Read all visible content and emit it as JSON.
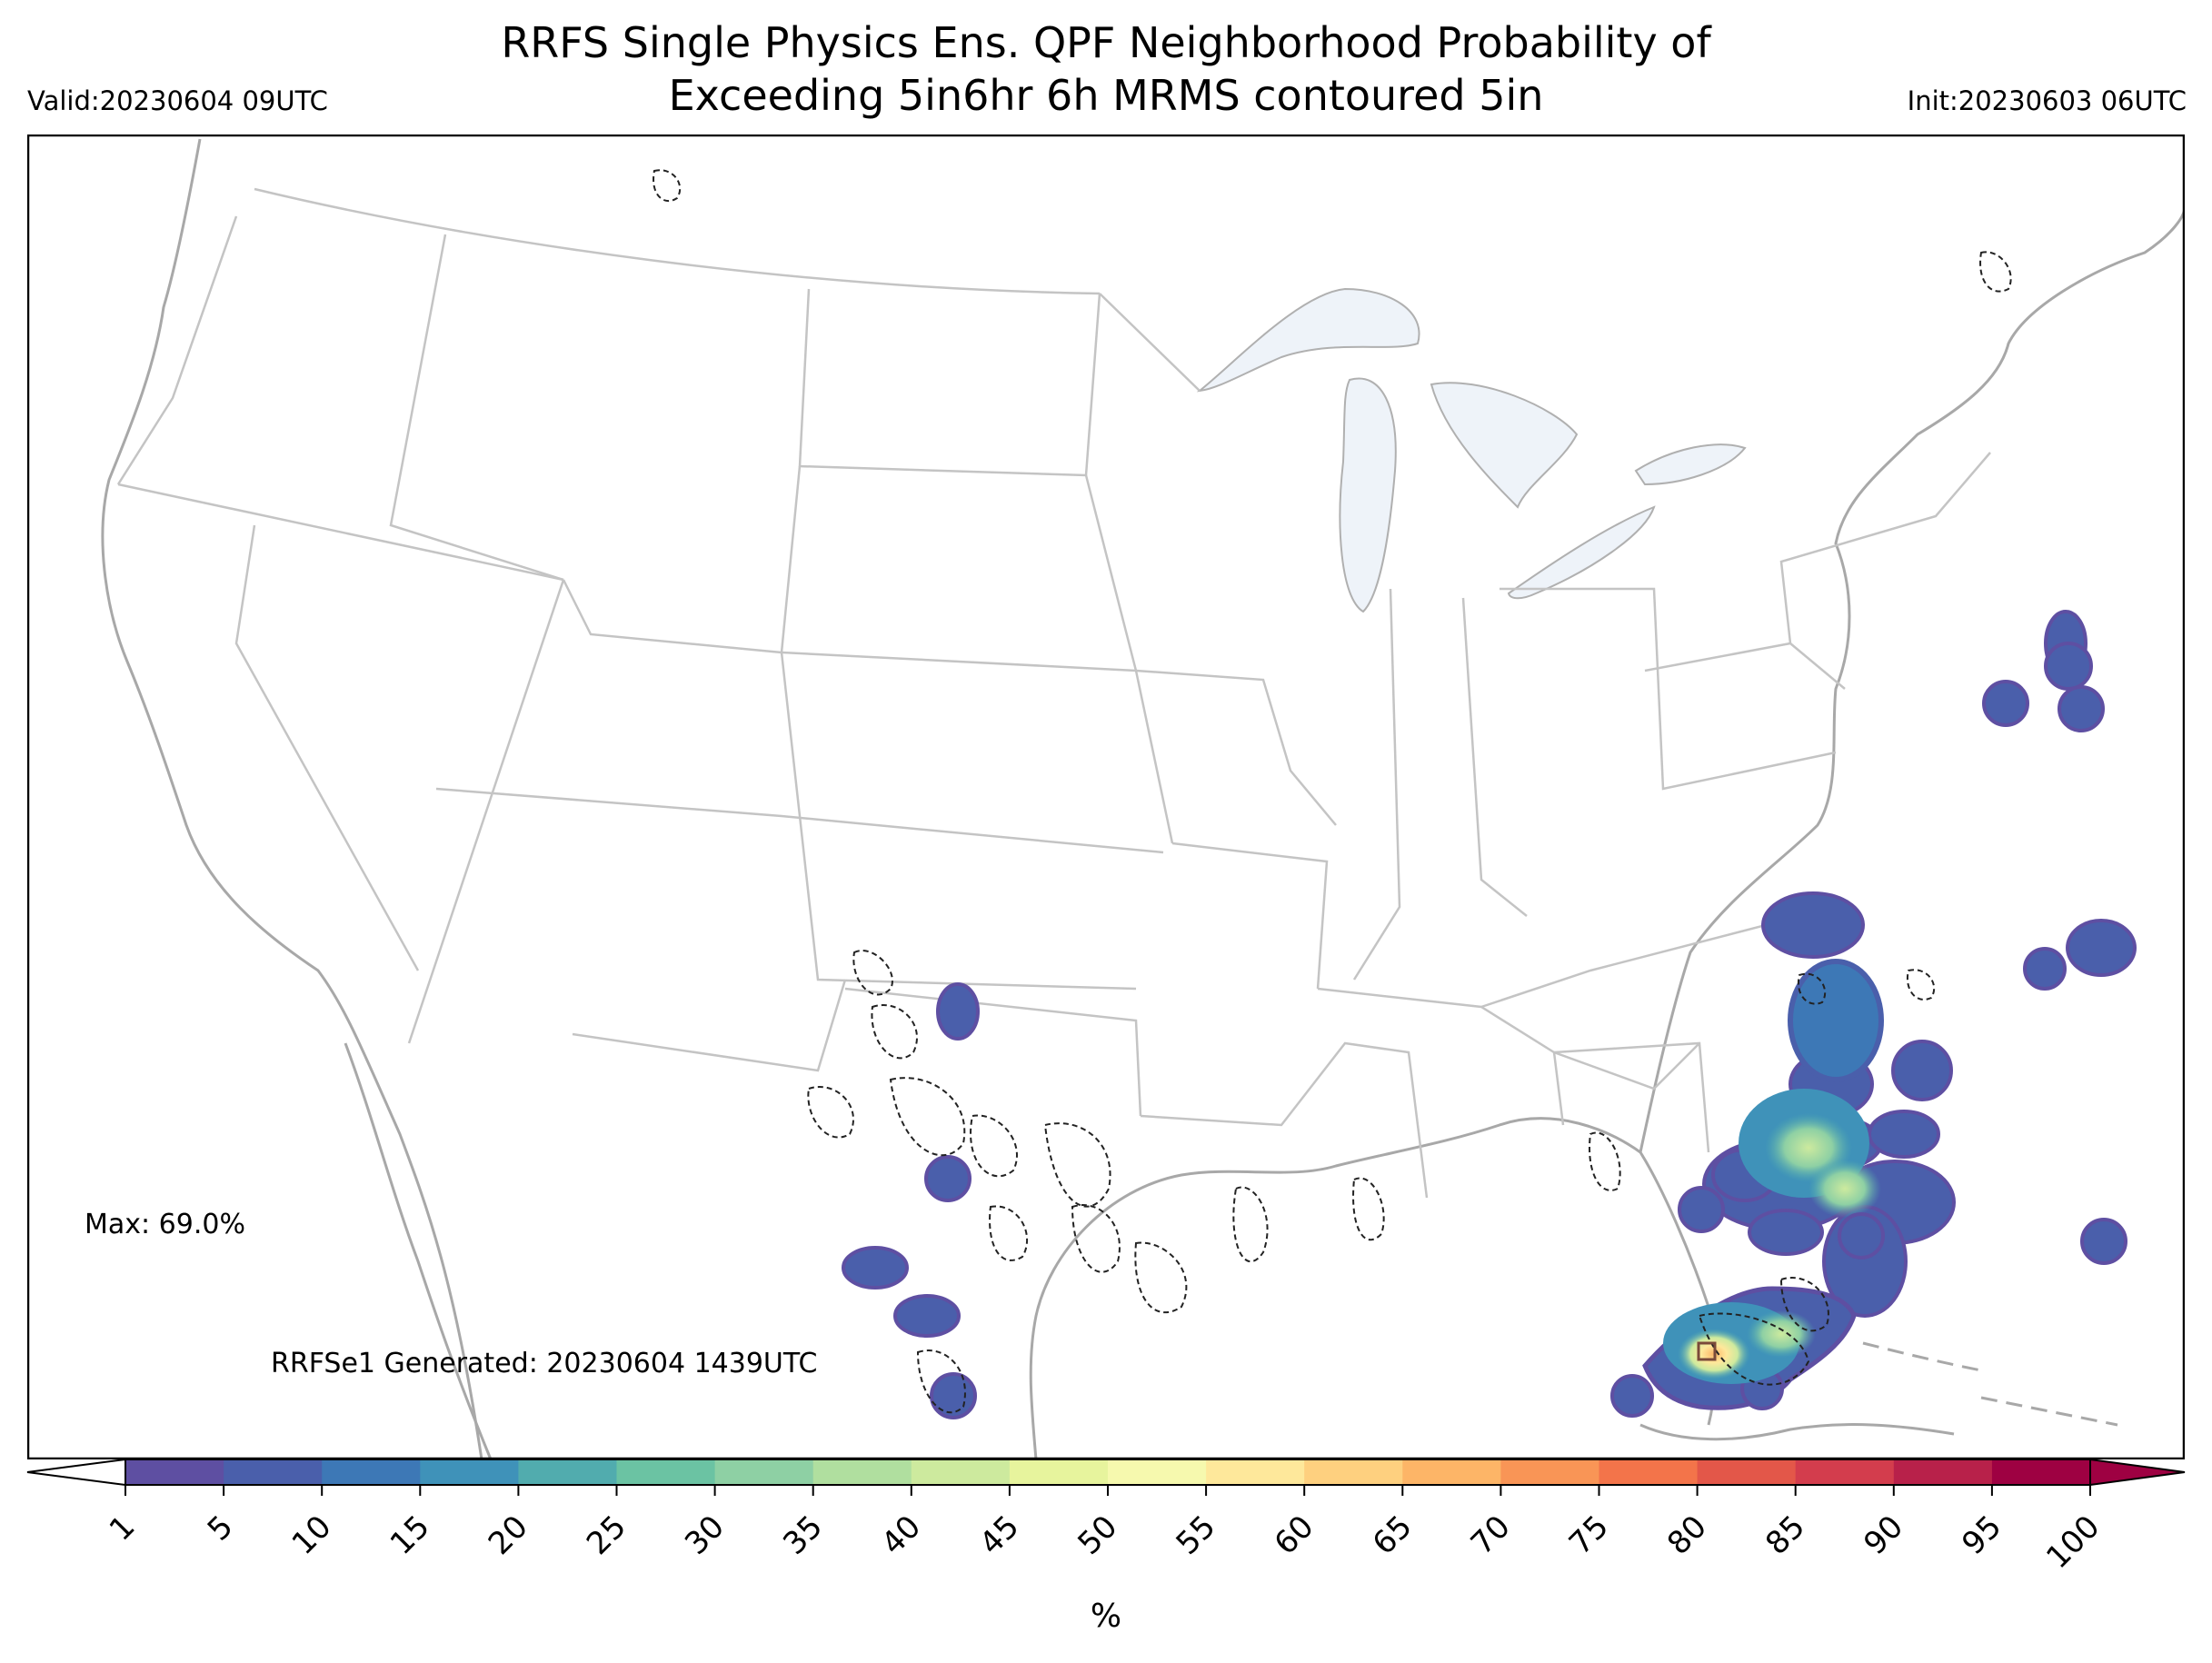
{
  "header": {
    "title_line1": "RRFS Single Physics Ens. QPF Neighborhood Probability of",
    "title_line2": "Exceeding 5in6hr 6h MRMS contoured 5in",
    "valid": "Valid:20230604 09UTC",
    "init": "Init:20230603 06UTC"
  },
  "annotations": {
    "max": "Max: 69.0%",
    "generated": "RRFSe1 Generated: 20230604 1439UTC"
  },
  "colorbar": {
    "ticks": [
      "1",
      "5",
      "10",
      "15",
      "20",
      "25",
      "30",
      "35",
      "40",
      "45",
      "50",
      "55",
      "60",
      "65",
      "70",
      "75",
      "80",
      "85",
      "90",
      "95",
      "100"
    ],
    "colors": [
      "#5e4fa2",
      "#4a5fab",
      "#3d78b6",
      "#3f92b9",
      "#51acae",
      "#6bc3a3",
      "#8ed0a4",
      "#b0df9f",
      "#cdea9e",
      "#e7f49d",
      "#f6f9ae",
      "#fee89b",
      "#fed07f",
      "#fdb567",
      "#f99556",
      "#f3744a",
      "#e35749",
      "#d33d4d",
      "#b8214a",
      "#9e0142"
    ],
    "over_color": "#9e0142",
    "under_color": "#ffffff",
    "unit": "%"
  },
  "map_colors": {
    "lake_fill": "#eef3f9",
    "boundary": "#b0b0b0",
    "mrms_contour": "#222222"
  }
}
